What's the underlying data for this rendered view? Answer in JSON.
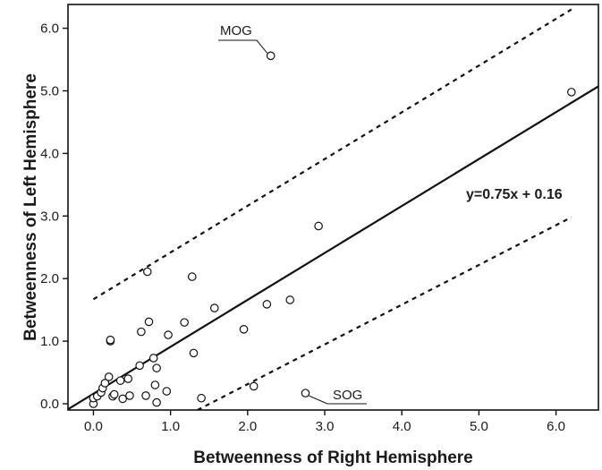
{
  "chart_data": {
    "type": "scatter",
    "title": "",
    "xlabel": "Betweenness of Right Hemisphere",
    "ylabel": "Betweenness of Left Hemisphere",
    "xlim": [
      -0.33,
      6.55
    ],
    "ylim": [
      -0.1,
      6.38
    ],
    "xticks": [
      0.0,
      1.0,
      2.0,
      3.0,
      4.0,
      5.0,
      6.0
    ],
    "yticks": [
      0.0,
      1.0,
      2.0,
      3.0,
      4.0,
      5.0,
      6.0
    ],
    "xtick_labels": [
      "0.0",
      "1.0",
      "2.0",
      "3.0",
      "4.0",
      "5.0",
      "6.0"
    ],
    "ytick_labels": [
      "0.0",
      "1.0",
      "2.0",
      "3.0",
      "4.0",
      "5.0",
      "6.0"
    ],
    "grid": false,
    "points": [
      {
        "x": 0.0,
        "y": 0.0
      },
      {
        "x": 0.0,
        "y": 0.09
      },
      {
        "x": 0.05,
        "y": 0.12
      },
      {
        "x": 0.1,
        "y": 0.18
      },
      {
        "x": 0.12,
        "y": 0.25
      },
      {
        "x": 0.15,
        "y": 0.33
      },
      {
        "x": 0.2,
        "y": 0.43
      },
      {
        "x": 0.22,
        "y": 1.0
      },
      {
        "x": 0.22,
        "y": 1.02
      },
      {
        "x": 0.25,
        "y": 0.12
      },
      {
        "x": 0.27,
        "y": 0.15
      },
      {
        "x": 0.35,
        "y": 0.37
      },
      {
        "x": 0.38,
        "y": 0.08
      },
      {
        "x": 0.45,
        "y": 0.4
      },
      {
        "x": 0.47,
        "y": 0.13
      },
      {
        "x": 0.6,
        "y": 0.61
      },
      {
        "x": 0.62,
        "y": 1.15
      },
      {
        "x": 0.68,
        "y": 0.13
      },
      {
        "x": 0.7,
        "y": 2.11
      },
      {
        "x": 0.72,
        "y": 1.31
      },
      {
        "x": 0.78,
        "y": 0.73
      },
      {
        "x": 0.8,
        "y": 0.3
      },
      {
        "x": 0.82,
        "y": 0.57
      },
      {
        "x": 0.82,
        "y": 0.02
      },
      {
        "x": 0.95,
        "y": 0.2
      },
      {
        "x": 0.97,
        "y": 1.1
      },
      {
        "x": 1.18,
        "y": 1.3
      },
      {
        "x": 1.28,
        "y": 2.03
      },
      {
        "x": 1.3,
        "y": 0.81
      },
      {
        "x": 1.4,
        "y": 0.09
      },
      {
        "x": 1.57,
        "y": 1.53
      },
      {
        "x": 1.95,
        "y": 1.19
      },
      {
        "x": 2.08,
        "y": 0.28
      },
      {
        "x": 2.25,
        "y": 1.59
      },
      {
        "x": 2.3,
        "y": 5.56
      },
      {
        "x": 2.55,
        "y": 1.66
      },
      {
        "x": 2.75,
        "y": 0.17
      },
      {
        "x": 2.92,
        "y": 2.84
      },
      {
        "x": 6.2,
        "y": 4.98
      }
    ],
    "regression": {
      "slope": 0.75,
      "intercept": 0.16,
      "label": "y=0.75x + 0.16"
    },
    "bounds": [
      {
        "x0": 0.0,
        "y0": 1.67,
        "x1": 6.2,
        "y1": 6.3
      },
      {
        "x0": 1.35,
        "y0": -0.1,
        "x1": 6.2,
        "y1": 2.98
      }
    ],
    "annotations": [
      {
        "text": "MOG",
        "target": {
          "x": 2.3,
          "y": 5.56
        }
      },
      {
        "text": "SOG",
        "target": {
          "x": 2.75,
          "y": 0.17
        }
      }
    ]
  }
}
